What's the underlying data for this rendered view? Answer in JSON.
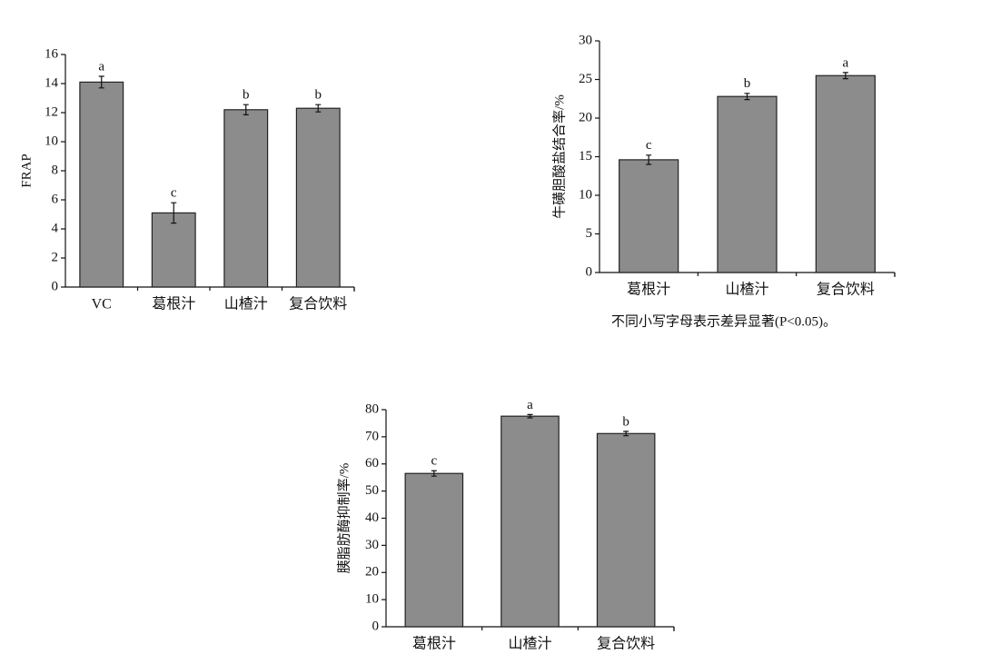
{
  "chart_data": [
    {
      "type": "bar",
      "ylabel": "FRAP",
      "categories": [
        "VC",
        "葛根汁",
        "山楂汁",
        "复合饮料"
      ],
      "values": [
        14.1,
        5.1,
        12.2,
        12.3
      ],
      "errors": [
        0.4,
        0.7,
        0.35,
        0.25
      ],
      "letters": [
        "a",
        "c",
        "b",
        "b"
      ],
      "color": "#8c8c8c",
      "ylim": [
        0,
        16
      ],
      "yticks": [
        0,
        2,
        4,
        6,
        8,
        10,
        12,
        14,
        16
      ]
    },
    {
      "type": "bar",
      "ylabel": "牛磺胆酸盐结合率/%",
      "categories": [
        "葛根汁",
        "山楂汁",
        "复合饮料"
      ],
      "values": [
        14.6,
        22.8,
        25.5
      ],
      "errors": [
        0.6,
        0.4,
        0.4
      ],
      "letters": [
        "c",
        "b",
        "a"
      ],
      "color": "#8c8c8c",
      "ylim": [
        0,
        30
      ],
      "yticks": [
        0,
        5,
        10,
        15,
        20,
        25,
        30
      ],
      "note": "不同小写字母表示差异显著(P<0.05)。"
    },
    {
      "type": "bar",
      "ylabel": "胰脂肪酶抑制率/%",
      "categories": [
        "葛根汁",
        "山楂汁",
        "复合饮料"
      ],
      "values": [
        56.5,
        77.6,
        71.2
      ],
      "errors": [
        1.0,
        0.6,
        0.8
      ],
      "letters": [
        "c",
        "a",
        "b"
      ],
      "color": "#8c8c8c",
      "ylim": [
        0,
        80
      ],
      "yticks": [
        0,
        10,
        20,
        30,
        40,
        50,
        60,
        70,
        80
      ]
    }
  ]
}
